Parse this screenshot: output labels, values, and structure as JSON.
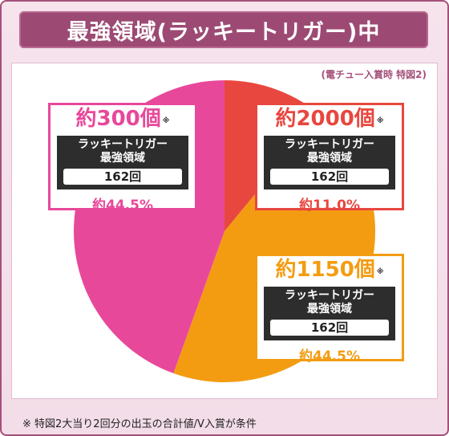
{
  "title": "最強領域(ラッキートリガー)中",
  "subtitle": "(電チュー入賞時 特図2)",
  "footnote": "※ 特図2大当り2回分の出玉の合計値/V入賞が条件",
  "colors": {
    "frame": "#a4507a",
    "title_bg": "#9c4a73",
    "pink": "#e8489a",
    "red": "#e8473f",
    "orange": "#f39c12"
  },
  "chart_data": {
    "type": "pie",
    "slices": [
      {
        "label": "約2000個",
        "pct_label": "約11.0%",
        "value": 11.0,
        "color": "#e8473f"
      },
      {
        "label": "約1150個",
        "pct_label": "約44.5%",
        "value": 44.5,
        "color": "#f39c12"
      },
      {
        "label": "約300個",
        "pct_label": "約44.5%",
        "value": 44.5,
        "color": "#e8489a"
      }
    ]
  },
  "cards": [
    {
      "amount": "約300個",
      "mark": "※",
      "mode_line1": "ラッキートリガー",
      "mode_line2": "最強領域",
      "count": "162回",
      "pct": "約44.5%",
      "color": "#e8489a"
    },
    {
      "amount": "約2000個",
      "mark": "※",
      "mode_line1": "ラッキートリガー",
      "mode_line2": "最強領域",
      "count": "162回",
      "pct": "約11.0%",
      "color": "#e8473f"
    },
    {
      "amount": "約1150個",
      "mark": "※",
      "mode_line1": "ラッキートリガー",
      "mode_line2": "最強領域",
      "count": "162回",
      "pct": "約44.5%",
      "color": "#f39c12"
    }
  ]
}
